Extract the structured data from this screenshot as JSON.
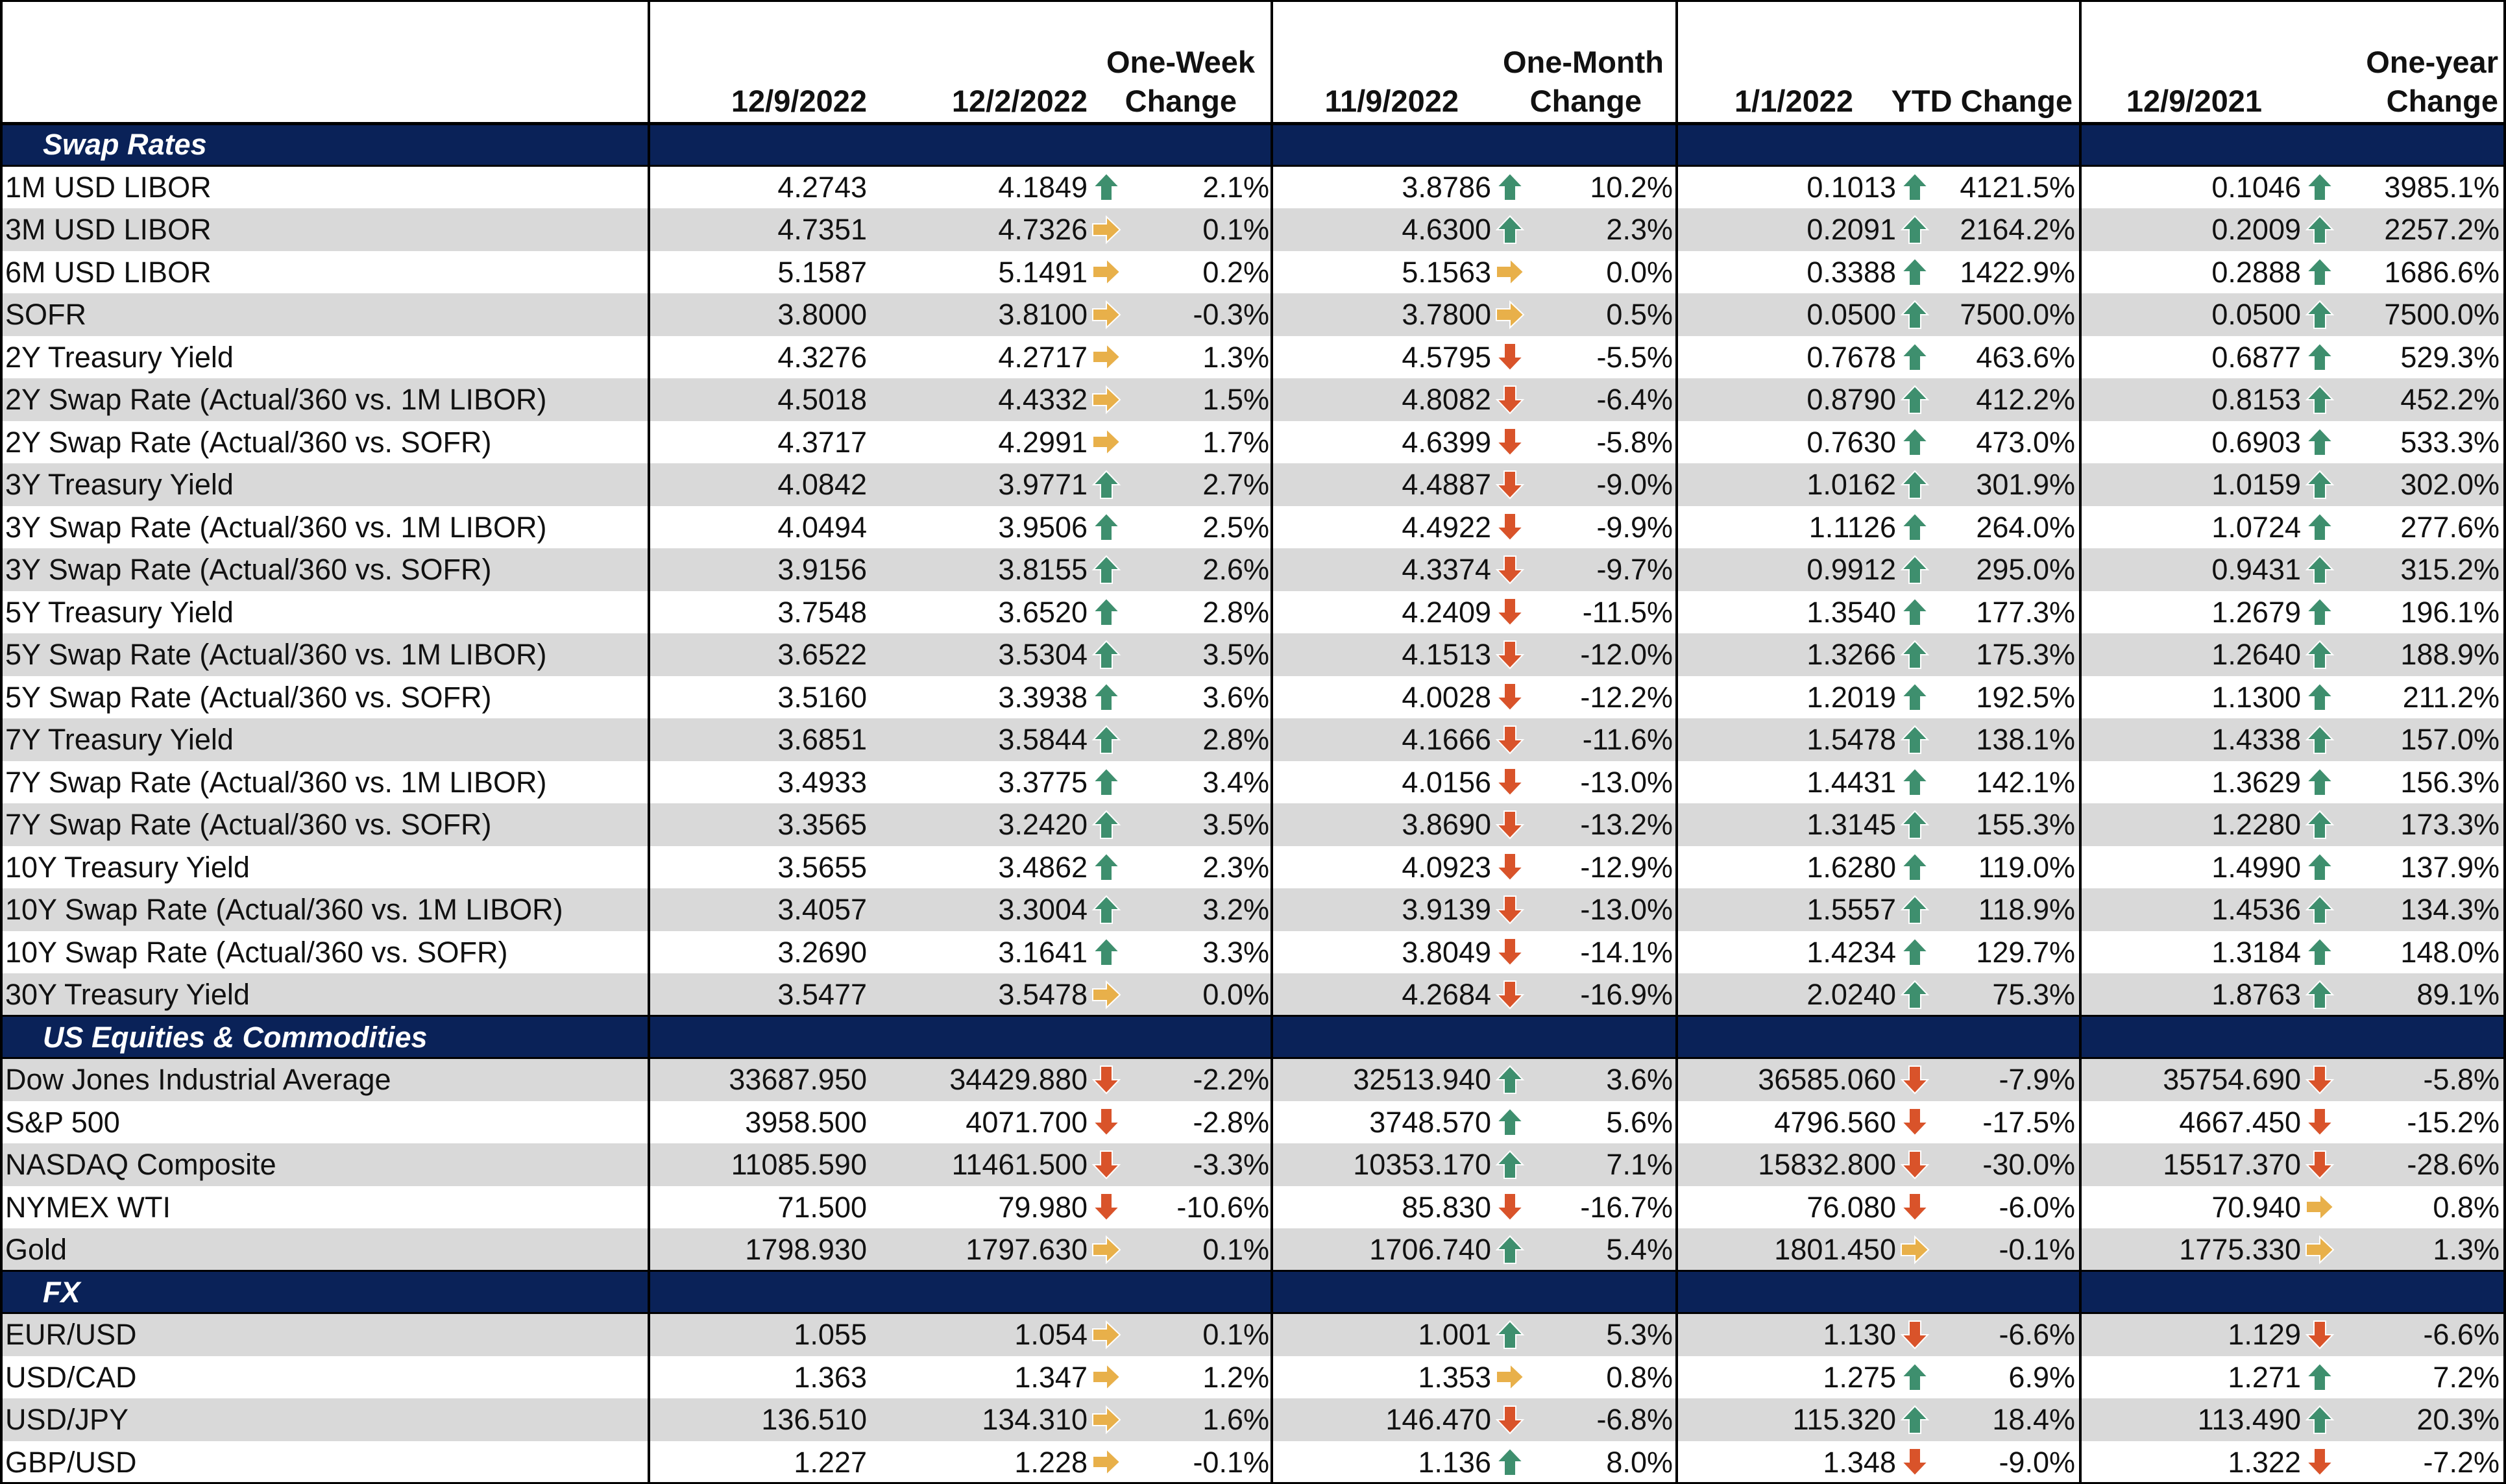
{
  "header": {
    "date_a": "12/9/2022",
    "date_b": "12/2/2022",
    "chg_week": [
      "One-Week",
      "Change"
    ],
    "date_c": "11/9/2022",
    "chg_month": [
      "One-Month",
      "Change"
    ],
    "date_d": "1/1/2022",
    "chg_ytd": "YTD Change",
    "date_e": "12/9/2021",
    "chg_year": [
      "One-year",
      "Change"
    ]
  },
  "colors": {
    "navy": "#0a2258",
    "up": "#3e8f6e",
    "down": "#d9532a",
    "flat": "#e8b04a",
    "gray": "#d9d9d9"
  },
  "icon_names": {
    "up": "up-arrow-icon",
    "down": "down-arrow-icon",
    "flat": "right-arrow-icon"
  },
  "sections": [
    {
      "title": "Swap Rates",
      "rows": [
        [
          "1M USD LIBOR",
          "4.2743",
          "4.1849",
          "up",
          "2.1%",
          "3.8786",
          "up",
          "10.2%",
          "0.1013",
          "up",
          "4121.5%",
          "0.1046",
          "up",
          "3985.1%"
        ],
        [
          "3M USD LIBOR",
          "4.7351",
          "4.7326",
          "flat",
          "0.1%",
          "4.6300",
          "up",
          "2.3%",
          "0.2091",
          "up",
          "2164.2%",
          "0.2009",
          "up",
          "2257.2%"
        ],
        [
          "6M USD LIBOR",
          "5.1587",
          "5.1491",
          "flat",
          "0.2%",
          "5.1563",
          "flat",
          "0.0%",
          "0.3388",
          "up",
          "1422.9%",
          "0.2888",
          "up",
          "1686.6%"
        ],
        [
          "SOFR",
          "3.8000",
          "3.8100",
          "flat",
          "-0.3%",
          "3.7800",
          "flat",
          "0.5%",
          "0.0500",
          "up",
          "7500.0%",
          "0.0500",
          "up",
          "7500.0%"
        ],
        [
          "2Y Treasury Yield",
          "4.3276",
          "4.2717",
          "flat",
          "1.3%",
          "4.5795",
          "down",
          "-5.5%",
          "0.7678",
          "up",
          "463.6%",
          "0.6877",
          "up",
          "529.3%"
        ],
        [
          "2Y Swap Rate (Actual/360 vs. 1M LIBOR)",
          "4.5018",
          "4.4332",
          "flat",
          "1.5%",
          "4.8082",
          "down",
          "-6.4%",
          "0.8790",
          "up",
          "412.2%",
          "0.8153",
          "up",
          "452.2%"
        ],
        [
          "2Y Swap Rate (Actual/360 vs. SOFR)",
          "4.3717",
          "4.2991",
          "flat",
          "1.7%",
          "4.6399",
          "down",
          "-5.8%",
          "0.7630",
          "up",
          "473.0%",
          "0.6903",
          "up",
          "533.3%"
        ],
        [
          "3Y Treasury Yield",
          "4.0842",
          "3.9771",
          "up",
          "2.7%",
          "4.4887",
          "down",
          "-9.0%",
          "1.0162",
          "up",
          "301.9%",
          "1.0159",
          "up",
          "302.0%"
        ],
        [
          "3Y Swap Rate (Actual/360 vs. 1M LIBOR)",
          "4.0494",
          "3.9506",
          "up",
          "2.5%",
          "4.4922",
          "down",
          "-9.9%",
          "1.1126",
          "up",
          "264.0%",
          "1.0724",
          "up",
          "277.6%"
        ],
        [
          "3Y Swap Rate (Actual/360 vs. SOFR)",
          "3.9156",
          "3.8155",
          "up",
          "2.6%",
          "4.3374",
          "down",
          "-9.7%",
          "0.9912",
          "up",
          "295.0%",
          "0.9431",
          "up",
          "315.2%"
        ],
        [
          "5Y Treasury Yield",
          "3.7548",
          "3.6520",
          "up",
          "2.8%",
          "4.2409",
          "down",
          "-11.5%",
          "1.3540",
          "up",
          "177.3%",
          "1.2679",
          "up",
          "196.1%"
        ],
        [
          "5Y Swap Rate (Actual/360 vs. 1M LIBOR)",
          "3.6522",
          "3.5304",
          "up",
          "3.5%",
          "4.1513",
          "down",
          "-12.0%",
          "1.3266",
          "up",
          "175.3%",
          "1.2640",
          "up",
          "188.9%"
        ],
        [
          "5Y Swap Rate (Actual/360 vs. SOFR)",
          "3.5160",
          "3.3938",
          "up",
          "3.6%",
          "4.0028",
          "down",
          "-12.2%",
          "1.2019",
          "up",
          "192.5%",
          "1.1300",
          "up",
          "211.2%"
        ],
        [
          "7Y Treasury Yield",
          "3.6851",
          "3.5844",
          "up",
          "2.8%",
          "4.1666",
          "down",
          "-11.6%",
          "1.5478",
          "up",
          "138.1%",
          "1.4338",
          "up",
          "157.0%"
        ],
        [
          "7Y Swap Rate (Actual/360 vs. 1M LIBOR)",
          "3.4933",
          "3.3775",
          "up",
          "3.4%",
          "4.0156",
          "down",
          "-13.0%",
          "1.4431",
          "up",
          "142.1%",
          "1.3629",
          "up",
          "156.3%"
        ],
        [
          "7Y Swap Rate (Actual/360 vs. SOFR)",
          "3.3565",
          "3.2420",
          "up",
          "3.5%",
          "3.8690",
          "down",
          "-13.2%",
          "1.3145",
          "up",
          "155.3%",
          "1.2280",
          "up",
          "173.3%"
        ],
        [
          "10Y Treasury Yield",
          "3.5655",
          "3.4862",
          "up",
          "2.3%",
          "4.0923",
          "down",
          "-12.9%",
          "1.6280",
          "up",
          "119.0%",
          "1.4990",
          "up",
          "137.9%"
        ],
        [
          "10Y Swap Rate (Actual/360 vs. 1M LIBOR)",
          "3.4057",
          "3.3004",
          "up",
          "3.2%",
          "3.9139",
          "down",
          "-13.0%",
          "1.5557",
          "up",
          "118.9%",
          "1.4536",
          "up",
          "134.3%"
        ],
        [
          "10Y Swap Rate (Actual/360 vs. SOFR)",
          "3.2690",
          "3.1641",
          "up",
          "3.3%",
          "3.8049",
          "down",
          "-14.1%",
          "1.4234",
          "up",
          "129.7%",
          "1.3184",
          "up",
          "148.0%"
        ],
        [
          "30Y Treasury Yield",
          "3.5477",
          "3.5478",
          "flat",
          "0.0%",
          "4.2684",
          "down",
          "-16.9%",
          "2.0240",
          "up",
          "75.3%",
          "1.8763",
          "up",
          "89.1%"
        ]
      ]
    },
    {
      "title": "US Equities & Commodities",
      "rows": [
        [
          "Dow Jones Industrial Average",
          "33687.950",
          "34429.880",
          "down",
          "-2.2%",
          "32513.940",
          "up",
          "3.6%",
          "36585.060",
          "down",
          "-7.9%",
          "35754.690",
          "down",
          "-5.8%"
        ],
        [
          "S&P 500",
          "3958.500",
          "4071.700",
          "down",
          "-2.8%",
          "3748.570",
          "up",
          "5.6%",
          "4796.560",
          "down",
          "-17.5%",
          "4667.450",
          "down",
          "-15.2%"
        ],
        [
          "NASDAQ Composite",
          "11085.590",
          "11461.500",
          "down",
          "-3.3%",
          "10353.170",
          "up",
          "7.1%",
          "15832.800",
          "down",
          "-30.0%",
          "15517.370",
          "down",
          "-28.6%"
        ],
        [
          "NYMEX WTI",
          "71.500",
          "79.980",
          "down",
          "-10.6%",
          "85.830",
          "down",
          "-16.7%",
          "76.080",
          "down",
          "-6.0%",
          "70.940",
          "flat",
          "0.8%"
        ],
        [
          "Gold",
          "1798.930",
          "1797.630",
          "flat",
          "0.1%",
          "1706.740",
          "up",
          "5.4%",
          "1801.450",
          "flat",
          "-0.1%",
          "1775.330",
          "flat",
          "1.3%"
        ]
      ]
    },
    {
      "title": "FX",
      "rows": [
        [
          "EUR/USD",
          "1.055",
          "1.054",
          "flat",
          "0.1%",
          "1.001",
          "up",
          "5.3%",
          "1.130",
          "down",
          "-6.6%",
          "1.129",
          "down",
          "-6.6%"
        ],
        [
          "USD/CAD",
          "1.363",
          "1.347",
          "flat",
          "1.2%",
          "1.353",
          "flat",
          "0.8%",
          "1.275",
          "up",
          "6.9%",
          "1.271",
          "up",
          "7.2%"
        ],
        [
          "USD/JPY",
          "136.510",
          "134.310",
          "flat",
          "1.6%",
          "146.470",
          "down",
          "-6.8%",
          "115.320",
          "up",
          "18.4%",
          "113.490",
          "up",
          "20.3%"
        ],
        [
          "GBP/USD",
          "1.227",
          "1.228",
          "flat",
          "-0.1%",
          "1.136",
          "up",
          "8.0%",
          "1.348",
          "down",
          "-9.0%",
          "1.322",
          "down",
          "-7.2%"
        ]
      ]
    }
  ]
}
